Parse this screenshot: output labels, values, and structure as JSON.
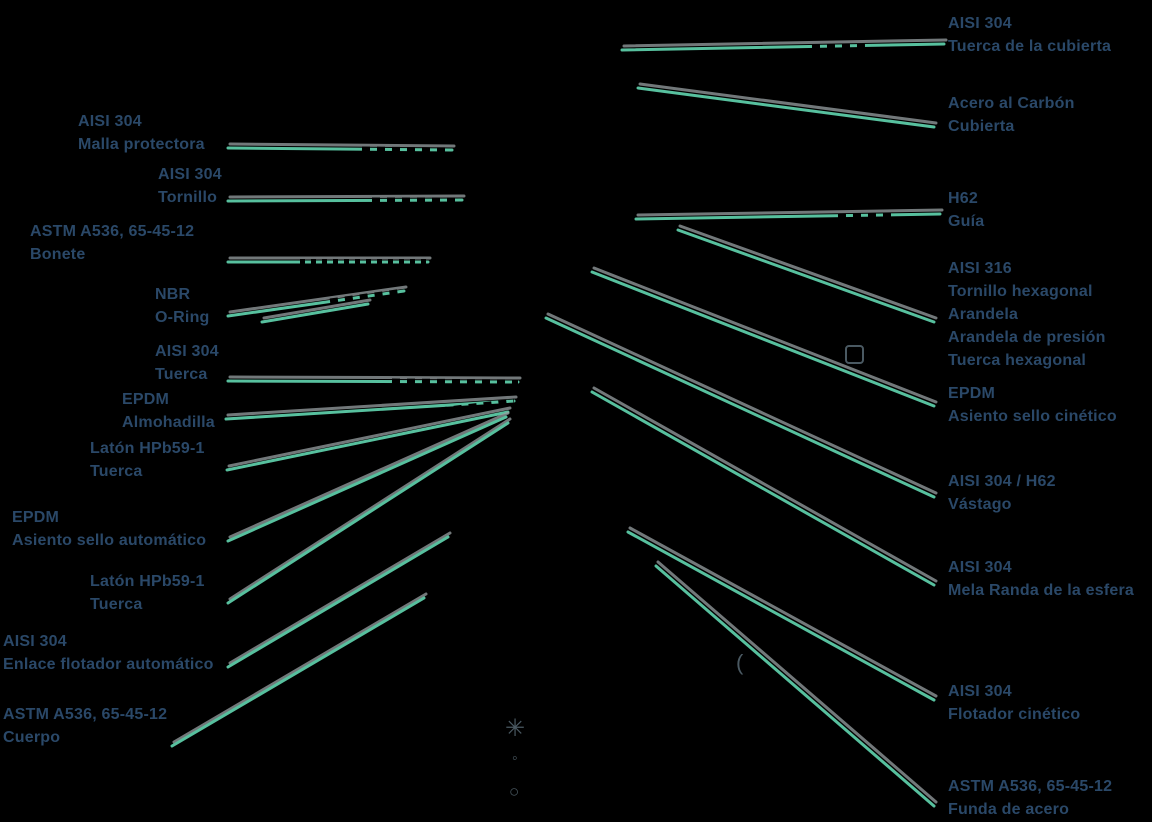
{
  "colors": {
    "background": "#000000",
    "label_text": "#2a4868",
    "leader_line": "#57c09e",
    "leader_shadow": "#99a1a3",
    "line_interrupt": "#000000",
    "artifact": "#4a5962"
  },
  "labels": {
    "left": [
      {
        "material": "AISI 304",
        "part": "Malla protectora"
      },
      {
        "material": "AISI 304",
        "part": "Tornillo"
      },
      {
        "material": "ASTM A536, 65-45-12",
        "part": "Bonete"
      },
      {
        "material": "NBR",
        "part": "O-Ring"
      },
      {
        "material": "AISI 304",
        "part": "Tuerca"
      },
      {
        "material": "EPDM",
        "part": "Almohadilla"
      },
      {
        "material": "Latón HPb59-1",
        "part": "Tuerca"
      },
      {
        "material": "EPDM",
        "part": "Asiento sello automático"
      },
      {
        "material": "Latón HPb59-1",
        "part": "Tuerca"
      },
      {
        "material": "AISI 304",
        "part": "Enlace flotador automático"
      },
      {
        "material": "ASTM A536, 65-45-12",
        "part": "Cuerpo"
      }
    ],
    "right": [
      {
        "material": "AISI 304",
        "part": "Tuerca de la cubierta"
      },
      {
        "material": "Acero al Carbón",
        "part": "Cubierta"
      },
      {
        "material": "H62",
        "part": "Guía"
      },
      {
        "material": "AISI 316",
        "part": "Tornillo hexagonal",
        "part2": "Arandela",
        "part3": "Arandela de presión",
        "part4": "Tuerca hexagonal"
      },
      {
        "material": "EPDM",
        "part": "Asiento sello cinético"
      },
      {
        "material": "AISI 304 / H62",
        "part": "Vástago"
      },
      {
        "material": "AISI 304",
        "part": "Mela Randa de la esfera"
      },
      {
        "material": "AISI 304",
        "part": "Flotador cinético"
      },
      {
        "material": "ASTM A536, 65-45-12",
        "part": "Funda de acero"
      }
    ]
  },
  "artifacts": {
    "flower_glyph": "✳",
    "dot_glyph": "◦",
    "circle_glyph": "○",
    "paren_glyph": "("
  }
}
